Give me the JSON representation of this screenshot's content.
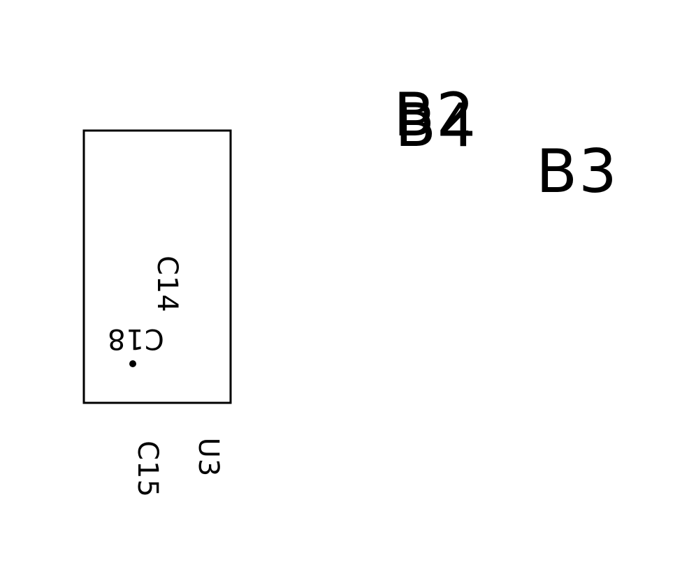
{
  "board": {
    "ink_color": "#000000",
    "background_color": "#ffffff",
    "labels": {
      "b2": "B2",
      "b4": "B4",
      "b3": "B3",
      "c14": "C14",
      "c18": "C18",
      "c15": "C15",
      "u3": "U3"
    }
  }
}
